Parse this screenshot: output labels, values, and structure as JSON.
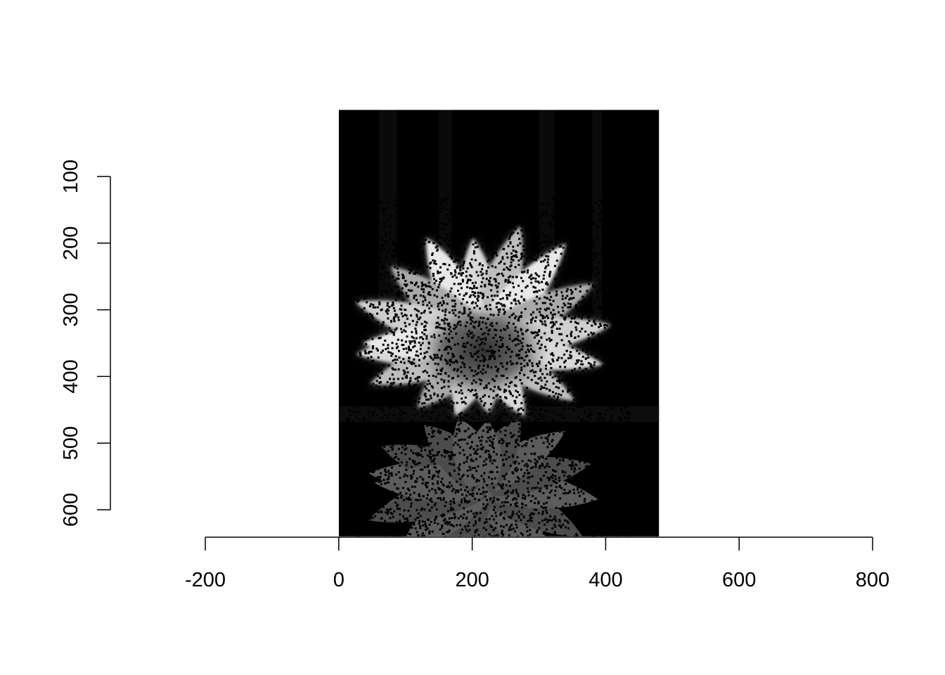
{
  "chart_data": {
    "type": "heatmap",
    "title": "",
    "xlabel": "",
    "ylabel": "",
    "description_of_content": "",
    "x_axis": {
      "ticks": [
        -200,
        0,
        200,
        400,
        600,
        800
      ],
      "tick_labels": [
        "-200",
        "0",
        "200",
        "400",
        "600",
        "800"
      ],
      "range": [
        -200,
        800
      ]
    },
    "y_axis": {
      "ticks": [
        100,
        200,
        300,
        400,
        500,
        600
      ],
      "tick_labels": [
        "100",
        "200",
        "300",
        "400",
        "500",
        "600"
      ],
      "range": [
        100,
        600
      ],
      "reversed": true,
      "label_rotation": "vertical"
    },
    "image": {
      "x_extent": [
        0,
        480
      ],
      "y_extent": [
        0,
        640
      ],
      "colormap": "grayscale",
      "background": "#000000",
      "subject": "white flower with pointed petals and its reflection below, sprinkled with black noise pixels"
    },
    "grid": false,
    "legend": "none"
  }
}
